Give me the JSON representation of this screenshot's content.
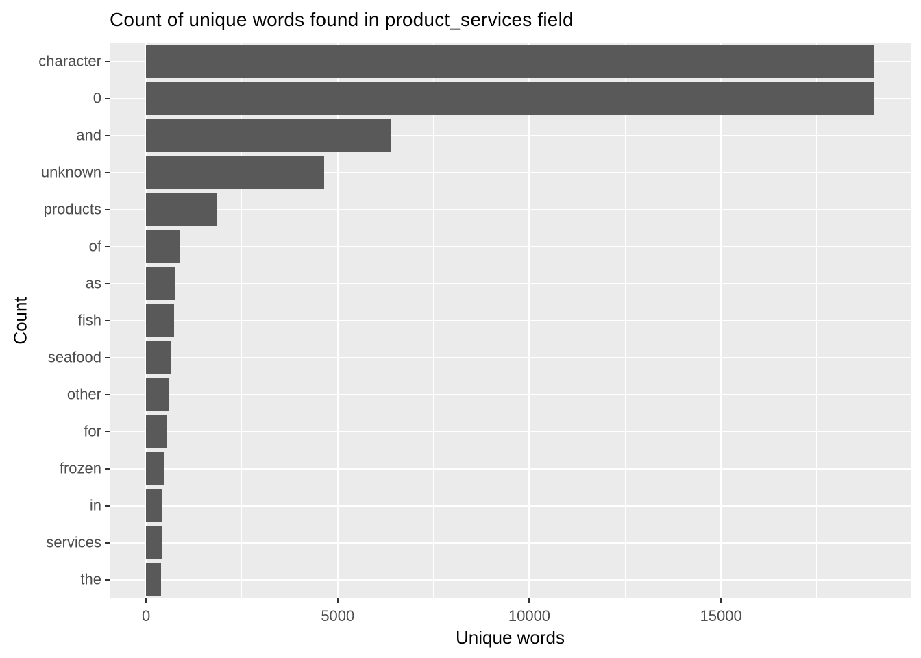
{
  "chart_data": {
    "type": "bar",
    "orientation": "horizontal",
    "title": "Count of unique words found in product_services field",
    "xlabel": "Unique words",
    "ylabel": "Count",
    "categories": [
      "character",
      "0",
      "and",
      "unknown",
      "products",
      "of",
      "as",
      "fish",
      "seafood",
      "other",
      "for",
      "frozen",
      "in",
      "services",
      "the"
    ],
    "values": [
      19000,
      19000,
      6390,
      4640,
      1860,
      875,
      750,
      730,
      640,
      585,
      535,
      460,
      430,
      425,
      385
    ],
    "xlim": [
      -950,
      19950
    ],
    "x_major_ticks": [
      0,
      5000,
      10000,
      15000
    ],
    "x_major_tick_labels": [
      "0",
      "5000",
      "10000",
      "15000"
    ],
    "x_minor_ticks": [
      2500,
      7500,
      12500,
      17500
    ],
    "grid": "major-and-minor-x, major-y",
    "legend": "none",
    "bar_width_fraction": 0.9,
    "colors": {
      "bar_fill": "#595959",
      "panel_bg": "#EBEBEB",
      "grid": "#FFFFFF",
      "tick_label": "#4D4D4D",
      "axis_title": "#000000",
      "title": "#000000",
      "tick_mark": "#333333",
      "background": "#FFFFFF"
    }
  }
}
